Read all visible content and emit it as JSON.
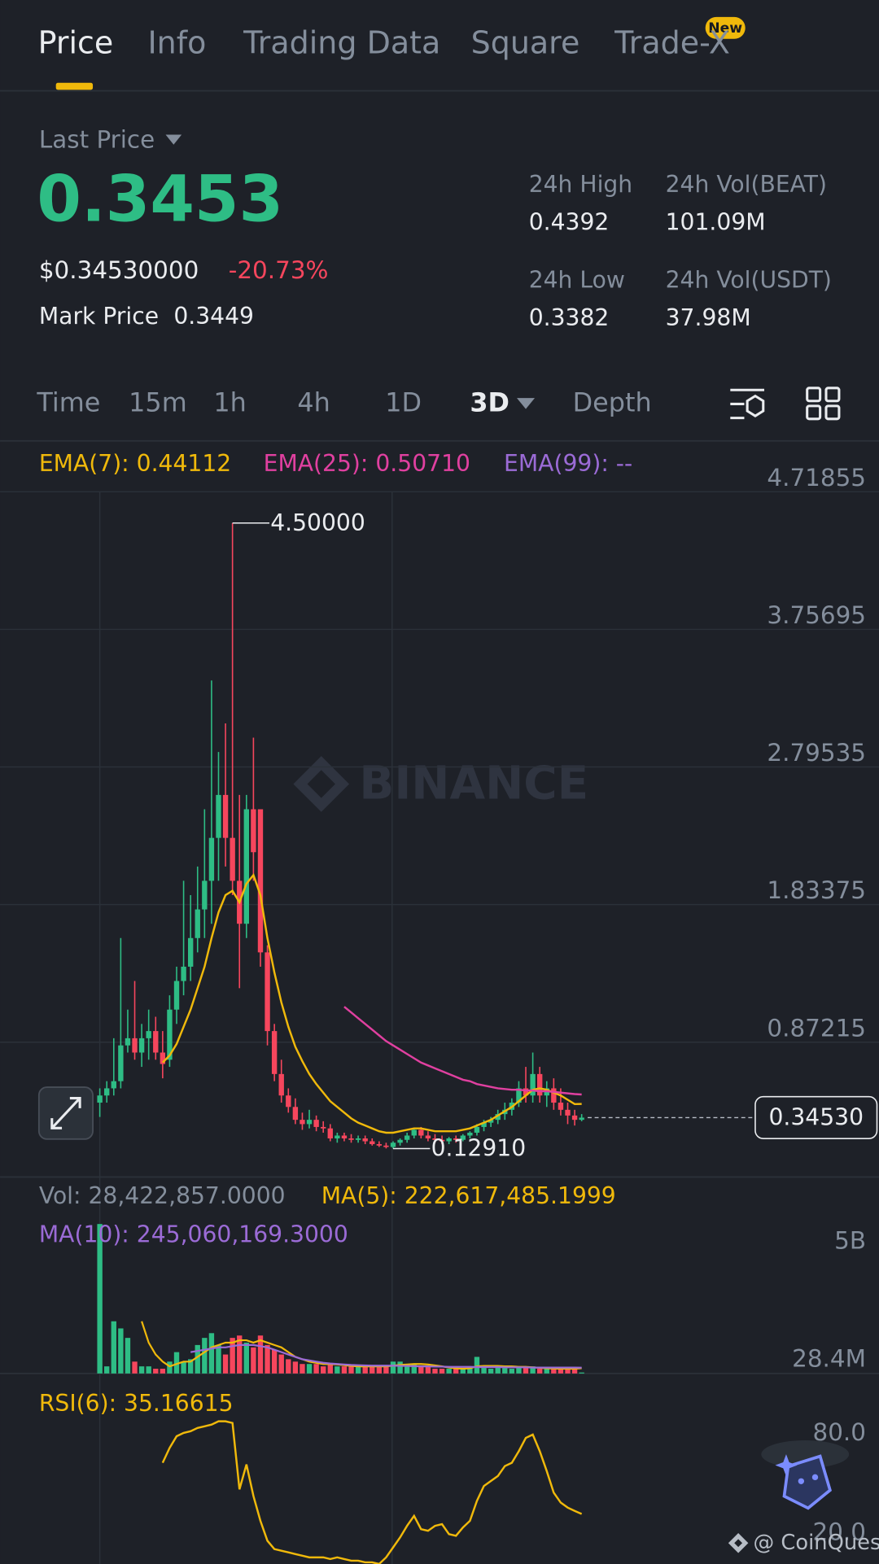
{
  "tabs": [
    "Price",
    "Info",
    "Trading Data",
    "Square",
    "Trade-X"
  ],
  "badge": "New",
  "last_price_label": "Last Price",
  "last_price": "0.3453",
  "usd_price": "$0.34530000",
  "change": "-20.73%",
  "mark_price_label": "Mark Price",
  "mark_price": "0.3449",
  "stats": [
    {
      "label": "24h High",
      "value": "0.4392"
    },
    {
      "label": "24h Vol(BEAT)",
      "value": "101.09M"
    },
    {
      "label": "24h Low",
      "value": "0.3382"
    },
    {
      "label": "24h Vol(USDT)",
      "value": "37.98M"
    }
  ],
  "intervals": [
    "Time",
    "15m",
    "1h",
    "4h",
    "1D",
    "3D",
    "Depth"
  ],
  "watermark": "BINANCE",
  "credit": "@ CoinQuest",
  "chart_data": [
    {
      "type": "candlestick",
      "up_color": "#2ebd85",
      "down_color": "#f6465d",
      "open": [
        0.45,
        0.5,
        0.55,
        0.6,
        0.85,
        0.9,
        0.8,
        0.9,
        0.95,
        0.8,
        0.75,
        1.1,
        1.3,
        1.4,
        1.6,
        1.8,
        2.0,
        2.3,
        2.6,
        2.3,
        2.0,
        1.7,
        2.5,
        2.5,
        1.5,
        0.95,
        0.65,
        0.5,
        0.42,
        0.33,
        0.3,
        0.33,
        0.28,
        0.27,
        0.2,
        0.22,
        0.2,
        0.19,
        0.2,
        0.18,
        0.16,
        0.15,
        0.14,
        0.17,
        0.19,
        0.22,
        0.26,
        0.22,
        0.2,
        0.19,
        0.18,
        0.2,
        0.19,
        0.22,
        0.24,
        0.28,
        0.31,
        0.33,
        0.37,
        0.4,
        0.45,
        0.55,
        0.5,
        0.65,
        0.5,
        0.55,
        0.45,
        0.4,
        0.36,
        0.33
      ],
      "high": [
        0.55,
        0.6,
        0.9,
        1.6,
        1.1,
        1.3,
        1.0,
        1.1,
        1.05,
        0.95,
        1.2,
        1.4,
        2.0,
        1.9,
        2.1,
        2.5,
        3.4,
        2.9,
        3.1,
        4.5,
        2.6,
        2.6,
        3.0,
        2.5,
        1.55,
        1.0,
        0.75,
        0.55,
        0.48,
        0.38,
        0.4,
        0.36,
        0.32,
        0.3,
        0.24,
        0.24,
        0.23,
        0.22,
        0.22,
        0.2,
        0.18,
        0.17,
        0.18,
        0.2,
        0.24,
        0.27,
        0.28,
        0.25,
        0.23,
        0.22,
        0.21,
        0.22,
        0.23,
        0.25,
        0.3,
        0.33,
        0.35,
        0.4,
        0.45,
        0.48,
        0.6,
        0.7,
        0.8,
        0.7,
        0.6,
        0.62,
        0.55,
        0.45,
        0.4,
        0.37
      ],
      "low": [
        0.35,
        0.45,
        0.5,
        0.55,
        0.8,
        0.75,
        0.7,
        0.75,
        0.75,
        0.62,
        0.7,
        1.0,
        1.2,
        1.3,
        1.5,
        1.6,
        1.7,
        2.0,
        2.1,
        1.9,
        1.25,
        1.6,
        2.0,
        1.4,
        0.85,
        0.6,
        0.45,
        0.38,
        0.3,
        0.26,
        0.27,
        0.25,
        0.24,
        0.18,
        0.17,
        0.18,
        0.17,
        0.17,
        0.16,
        0.15,
        0.14,
        0.13,
        0.1291,
        0.15,
        0.17,
        0.2,
        0.2,
        0.18,
        0.17,
        0.16,
        0.16,
        0.17,
        0.18,
        0.2,
        0.22,
        0.25,
        0.28,
        0.3,
        0.33,
        0.36,
        0.42,
        0.45,
        0.45,
        0.45,
        0.42,
        0.4,
        0.36,
        0.3,
        0.29,
        0.32
      ],
      "close": [
        0.5,
        0.55,
        0.6,
        0.85,
        0.9,
        0.8,
        0.9,
        0.95,
        0.8,
        0.72,
        1.1,
        1.3,
        1.4,
        1.6,
        1.8,
        2.0,
        2.3,
        2.6,
        2.3,
        2.0,
        1.7,
        2.5,
        2.2,
        1.5,
        0.95,
        0.65,
        0.5,
        0.42,
        0.33,
        0.3,
        0.33,
        0.28,
        0.27,
        0.2,
        0.22,
        0.2,
        0.19,
        0.2,
        0.18,
        0.16,
        0.15,
        0.14,
        0.17,
        0.19,
        0.22,
        0.26,
        0.22,
        0.2,
        0.19,
        0.18,
        0.2,
        0.19,
        0.22,
        0.24,
        0.28,
        0.31,
        0.33,
        0.37,
        0.4,
        0.45,
        0.55,
        0.5,
        0.65,
        0.5,
        0.55,
        0.45,
        0.4,
        0.36,
        0.33,
        0.3453
      ],
      "series": [
        {
          "label": "EMA(7): 0.44112",
          "color": "#f0b90b",
          "values": [
            null,
            null,
            null,
            null,
            null,
            null,
            null,
            null,
            null,
            0.73,
            0.78,
            0.86,
            0.98,
            1.1,
            1.25,
            1.4,
            1.6,
            1.78,
            1.9,
            1.93,
            1.85,
            1.98,
            2.04,
            1.9,
            1.6,
            1.36,
            1.15,
            0.98,
            0.84,
            0.74,
            0.65,
            0.58,
            0.52,
            0.46,
            0.42,
            0.38,
            0.34,
            0.31,
            0.29,
            0.27,
            0.25,
            0.24,
            0.24,
            0.25,
            0.26,
            0.27,
            0.27,
            0.26,
            0.25,
            0.25,
            0.25,
            0.25,
            0.26,
            0.27,
            0.29,
            0.31,
            0.33,
            0.36,
            0.39,
            0.42,
            0.46,
            0.5,
            0.54,
            0.55,
            0.54,
            0.52,
            0.5,
            0.47,
            0.44,
            0.44112
          ]
        },
        {
          "label": "EMA(25): 0.50710",
          "color": "#e040a0",
          "values": [
            null,
            null,
            null,
            null,
            null,
            null,
            null,
            null,
            null,
            null,
            null,
            null,
            null,
            null,
            null,
            null,
            null,
            null,
            null,
            null,
            null,
            null,
            null,
            null,
            null,
            null,
            null,
            null,
            null,
            null,
            null,
            null,
            null,
            null,
            null,
            1.12,
            1.08,
            1.04,
            1.0,
            0.96,
            0.92,
            0.88,
            0.85,
            0.82,
            0.79,
            0.76,
            0.73,
            0.71,
            0.69,
            0.67,
            0.65,
            0.63,
            0.61,
            0.6,
            0.58,
            0.57,
            0.56,
            0.55,
            0.545,
            0.54,
            0.54,
            0.535,
            0.535,
            0.53,
            0.53,
            0.525,
            0.52,
            0.515,
            0.51,
            0.5071
          ]
        },
        {
          "label": "EMA(99): --",
          "color": "#9b6bd6"
        }
      ],
      "ylim": [
        -0.0695,
        4.71855
      ],
      "yticks": [
        0.87215,
        1.83375,
        2.79535,
        3.75695,
        4.71855
      ],
      "high_marker": {
        "label": "4.50000",
        "value": 4.5
      },
      "low_marker": {
        "label": "0.12910",
        "value": 0.1291
      },
      "last_marker": {
        "label": "0.34530",
        "value": 0.3453
      }
    },
    {
      "type": "bar",
      "label": "Vol: 28,422,857.0000",
      "values": [
        6300000000.0,
        300000000.0,
        2200000000.0,
        1900000000.0,
        1500000000.0,
        500000000.0,
        300000000.0,
        300000000.0,
        200000000.0,
        200000000.0,
        500000000.0,
        900000000.0,
        500000000.0,
        600000000.0,
        1200000000.0,
        1500000000.0,
        1700000000.0,
        1200000000.0,
        800000000.0,
        1500000000.0,
        1600000000.0,
        1300000000.0,
        1100000000.0,
        1600000000.0,
        1200000000.0,
        1000000000.0,
        800000000.0,
        600000000.0,
        500000000.0,
        400000000.0,
        400000000.0,
        400000000.0,
        300000000.0,
        400000000.0,
        300000000.0,
        300000000.0,
        300000000.0,
        300000000.0,
        300000000.0,
        300000000.0,
        300000000.0,
        300000000.0,
        500000000.0,
        500000000.0,
        400000000.0,
        400000000.0,
        300000000.0,
        300000000.0,
        200000000.0,
        200000000.0,
        200000000.0,
        200000000.0,
        200000000.0,
        300000000.0,
        700000000.0,
        300000000.0,
        200000000.0,
        300000000.0,
        300000000.0,
        200000000.0,
        300000000.0,
        300000000.0,
        300000000.0,
        200000000.0,
        200000000.0,
        200000000.0,
        200000000.0,
        200000000.0,
        200000000.0,
        28422857
      ],
      "series": [
        {
          "label": "MA(5): 222,617,485.1999",
          "color": "#f0b90b",
          "values": [
            null,
            null,
            null,
            null,
            null,
            null,
            2200000000.0,
            1300000000.0,
            800000000.0,
            500000000.0,
            300000000.0,
            400000000.0,
            500000000.0,
            500000000.0,
            700000000.0,
            900000000.0,
            1100000000.0,
            1200000000.0,
            1300000000.0,
            1300000000.0,
            1400000000.0,
            1400000000.0,
            1300000000.0,
            1400000000.0,
            1300000000.0,
            1200000000.0,
            1100000000.0,
            900000000.0,
            700000000.0,
            600000000.0,
            500000000.0,
            450000000.0,
            400000000.0,
            400000000.0,
            380000000.0,
            350000000.0,
            320000000.0,
            300000000.0,
            300000000.0,
            300000000.0,
            300000000.0,
            300000000.0,
            330000000.0,
            360000000.0,
            380000000.0,
            400000000.0,
            400000000.0,
            380000000.0,
            340000000.0,
            300000000.0,
            250000000.0,
            220000000.0,
            200000000.0,
            220000000.0,
            300000000.0,
            320000000.0,
            320000000.0,
            320000000.0,
            300000000.0,
            300000000.0,
            280000000.0,
            280000000.0,
            260000000.0,
            240000000.0,
            220000000.0,
            210000000.0,
            200000000.0,
            200000000.0,
            200000000.0,
            222617485.1999
          ]
        },
        {
          "label": "MA(10): 245,060,169.3000",
          "color": "#9b6bd6",
          "values": [
            null,
            null,
            null,
            null,
            null,
            null,
            null,
            null,
            null,
            null,
            null,
            null,
            null,
            900000000.0,
            950000000.0,
            1000000000.0,
            1050000000.0,
            1100000000.0,
            1100000000.0,
            1150000000.0,
            1200000000.0,
            1200000000.0,
            1200000000.0,
            1150000000.0,
            1100000000.0,
            1000000000.0,
            900000000.0,
            800000000.0,
            700000000.0,
            600000000.0,
            550000000.0,
            500000000.0,
            450000000.0,
            420000000.0,
            400000000.0,
            380000000.0,
            360000000.0,
            350000000.0,
            340000000.0,
            330000000.0,
            330000000.0,
            330000000.0,
            330000000.0,
            320000000.0,
            320000000.0,
            310000000.0,
            300000000.0,
            300000000.0,
            290000000.0,
            290000000.0,
            280000000.0,
            280000000.0,
            280000000.0,
            280000000.0,
            270000000.0,
            270000000.0,
            270000000.0,
            270000000.0,
            260000000.0,
            260000000.0,
            260000000.0,
            260000000.0,
            250000000.0,
            250000000.0,
            250000000.0,
            250000000.0,
            250000000.0,
            250000000.0,
            250000000.0,
            245060169.3
          ]
        }
      ],
      "ylim": [
        0,
        6600000000.0
      ],
      "yticks": [
        {
          "value": 5000000000.0,
          "label": "5B"
        },
        {
          "value": 28422857,
          "label": "28.4M"
        }
      ]
    },
    {
      "type": "line",
      "series": [
        {
          "label": "RSI(6): 35.16615",
          "color": "#f0b90b",
          "values": [
            null,
            null,
            null,
            null,
            null,
            null,
            null,
            null,
            null,
            66,
            75,
            82,
            84,
            85,
            87,
            88,
            89,
            91,
            91,
            90,
            50,
            65,
            46,
            31,
            19,
            14,
            13,
            12,
            11,
            10,
            9,
            9,
            9,
            8,
            9,
            8,
            7,
            7,
            6,
            6,
            5,
            9,
            15,
            21,
            28,
            34,
            26,
            25,
            28,
            29,
            23,
            22,
            27,
            31,
            43,
            52,
            55,
            58,
            64,
            66,
            73,
            81,
            83,
            73,
            61,
            48,
            42,
            39,
            37,
            35.16615
          ]
        }
      ],
      "ylim": [
        5,
        109
      ],
      "yticks": [
        {
          "value": 80,
          "label": "80.0"
        },
        {
          "value": 20,
          "label": "20.0"
        }
      ]
    }
  ]
}
